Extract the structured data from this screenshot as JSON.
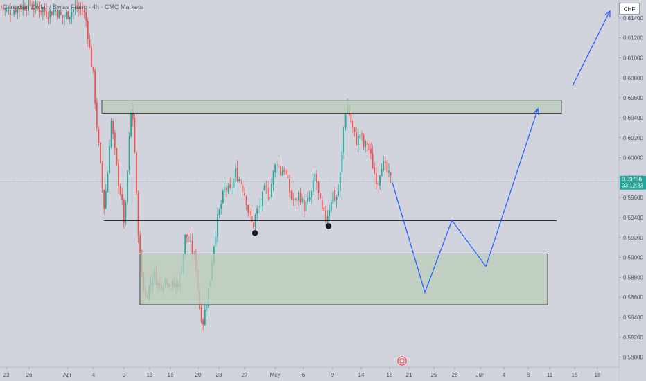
{
  "header": {
    "symbol_title": "Canadian Dollar / Swiss Franc · 4h · CMC Markets",
    "currency_button": "CHF"
  },
  "price_tag": {
    "price": "0.59756",
    "countdown": "03:12:23"
  },
  "colors": {
    "background": "#d1d4dc",
    "up_candle": "#26a69a",
    "down_candle": "#ef5350",
    "zone_fill": "#b9cdb9",
    "projection_line": "#2962ff",
    "price_tag": "#26a69a",
    "event_icon": "#f23645"
  },
  "chart_data": {
    "type": "candlestick",
    "title": "Canadian Dollar / Swiss Franc · 4h · CMC Markets",
    "y_axis": {
      "side": "right",
      "range": [
        0.579,
        0.6158
      ],
      "ticks": [
        "0.61400",
        "0.61200",
        "0.61000",
        "0.60800",
        "0.60600",
        "0.60400",
        "0.60200",
        "0.60000",
        "0.59800",
        "0.59600",
        "0.59400",
        "0.59200",
        "0.59000",
        "0.58800",
        "0.58600",
        "0.58400",
        "0.58200",
        "0.58000"
      ]
    },
    "x_axis": {
      "ticks": [
        "23",
        "26",
        "Apr",
        "4",
        "9",
        "13",
        "16",
        "20",
        "23",
        "27",
        "May",
        "6",
        "9",
        "14",
        "18",
        "21",
        "25",
        "28",
        "Jun",
        "4",
        "8",
        "11",
        "15",
        "18"
      ],
      "tick_positions": [
        9,
        42,
        97,
        135,
        179,
        216,
        246,
        286,
        316,
        353,
        397,
        438,
        480,
        521,
        562,
        590,
        626,
        656,
        693,
        727,
        762,
        793,
        829,
        862
      ]
    },
    "price_path": [
      [
        0,
        0.6152
      ],
      [
        10,
        0.6146
      ],
      [
        25,
        0.615
      ],
      [
        40,
        0.6153
      ],
      [
        55,
        0.615
      ],
      [
        70,
        0.6145
      ],
      [
        80,
        0.6148
      ],
      [
        90,
        0.614
      ],
      [
        100,
        0.6145
      ],
      [
        110,
        0.615
      ],
      [
        120,
        0.6148
      ],
      [
        125,
        0.6135
      ],
      [
        130,
        0.6105
      ],
      [
        135,
        0.608
      ],
      [
        140,
        0.603
      ],
      [
        145,
        0.599
      ],
      [
        150,
        0.595
      ],
      [
        155,
        0.598
      ],
      [
        160,
        0.604
      ],
      [
        165,
        0.601
      ],
      [
        170,
        0.598
      ],
      [
        175,
        0.596
      ],
      [
        180,
        0.593
      ],
      [
        185,
        0.6
      ],
      [
        190,
        0.6055
      ],
      [
        193,
        0.603
      ],
      [
        197,
        0.596
      ],
      [
        201,
        0.591
      ],
      [
        205,
        0.588
      ],
      [
        210,
        0.586
      ],
      [
        215,
        0.587
      ],
      [
        222,
        0.5885
      ],
      [
        230,
        0.587
      ],
      [
        240,
        0.588
      ],
      [
        250,
        0.587
      ],
      [
        258,
        0.5875
      ],
      [
        263,
        0.5895
      ],
      [
        268,
        0.5925
      ],
      [
        273,
        0.5915
      ],
      [
        278,
        0.5905
      ],
      [
        283,
        0.589
      ],
      [
        288,
        0.585
      ],
      [
        293,
        0.5835
      ],
      [
        298,
        0.5855
      ],
      [
        303,
        0.5875
      ],
      [
        308,
        0.591
      ],
      [
        313,
        0.5935
      ],
      [
        318,
        0.595
      ],
      [
        325,
        0.597
      ],
      [
        332,
        0.5965
      ],
      [
        340,
        0.5985
      ],
      [
        348,
        0.5975
      ],
      [
        355,
        0.596
      ],
      [
        360,
        0.594
      ],
      [
        365,
        0.593
      ],
      [
        370,
        0.5945
      ],
      [
        377,
        0.5955
      ],
      [
        383,
        0.597
      ],
      [
        388,
        0.596
      ],
      [
        395,
        0.5985
      ],
      [
        400,
        0.5998
      ],
      [
        405,
        0.5985
      ],
      [
        410,
        0.599
      ],
      [
        415,
        0.5975
      ],
      [
        420,
        0.596
      ],
      [
        426,
        0.5955
      ],
      [
        432,
        0.5965
      ],
      [
        438,
        0.595
      ],
      [
        444,
        0.5955
      ],
      [
        450,
        0.5965
      ],
      [
        455,
        0.5985
      ],
      [
        460,
        0.596
      ],
      [
        465,
        0.5945
      ],
      [
        470,
        0.5938
      ],
      [
        475,
        0.595
      ],
      [
        480,
        0.5965
      ],
      [
        484,
        0.5958
      ],
      [
        488,
        0.5965
      ],
      [
        492,
        0.599
      ],
      [
        496,
        0.603
      ],
      [
        500,
        0.6055
      ],
      [
        505,
        0.604
      ],
      [
        510,
        0.6025
      ],
      [
        515,
        0.6015
      ],
      [
        520,
        0.6025
      ],
      [
        525,
        0.601
      ],
      [
        530,
        0.6015
      ],
      [
        535,
        0.6
      ],
      [
        540,
        0.5985
      ],
      [
        545,
        0.5975
      ],
      [
        550,
        0.5995
      ],
      [
        555,
        0.599
      ],
      [
        560,
        0.5982
      ],
      [
        566,
        0.5975
      ]
    ],
    "annotations": {
      "resistance_zone": {
        "y1": 0.60445,
        "y2": 0.60575
      },
      "support_zone": {
        "y1": 0.58525,
        "y2": 0.59035
      },
      "neckline": {
        "y": 0.5937
      },
      "projection_path": [
        [
          566,
          0.5975
        ],
        [
          613,
          0.5865
        ],
        [
          652,
          0.5937
        ],
        [
          701,
          0.5891
        ],
        [
          776,
          0.6049
        ]
      ],
      "target_arrow": [
        [
          826,
          0.6072
        ],
        [
          880,
          0.6147
        ]
      ],
      "swing_lows": [
        0.593,
        0.5937
      ]
    },
    "last_price": 0.59756
  }
}
